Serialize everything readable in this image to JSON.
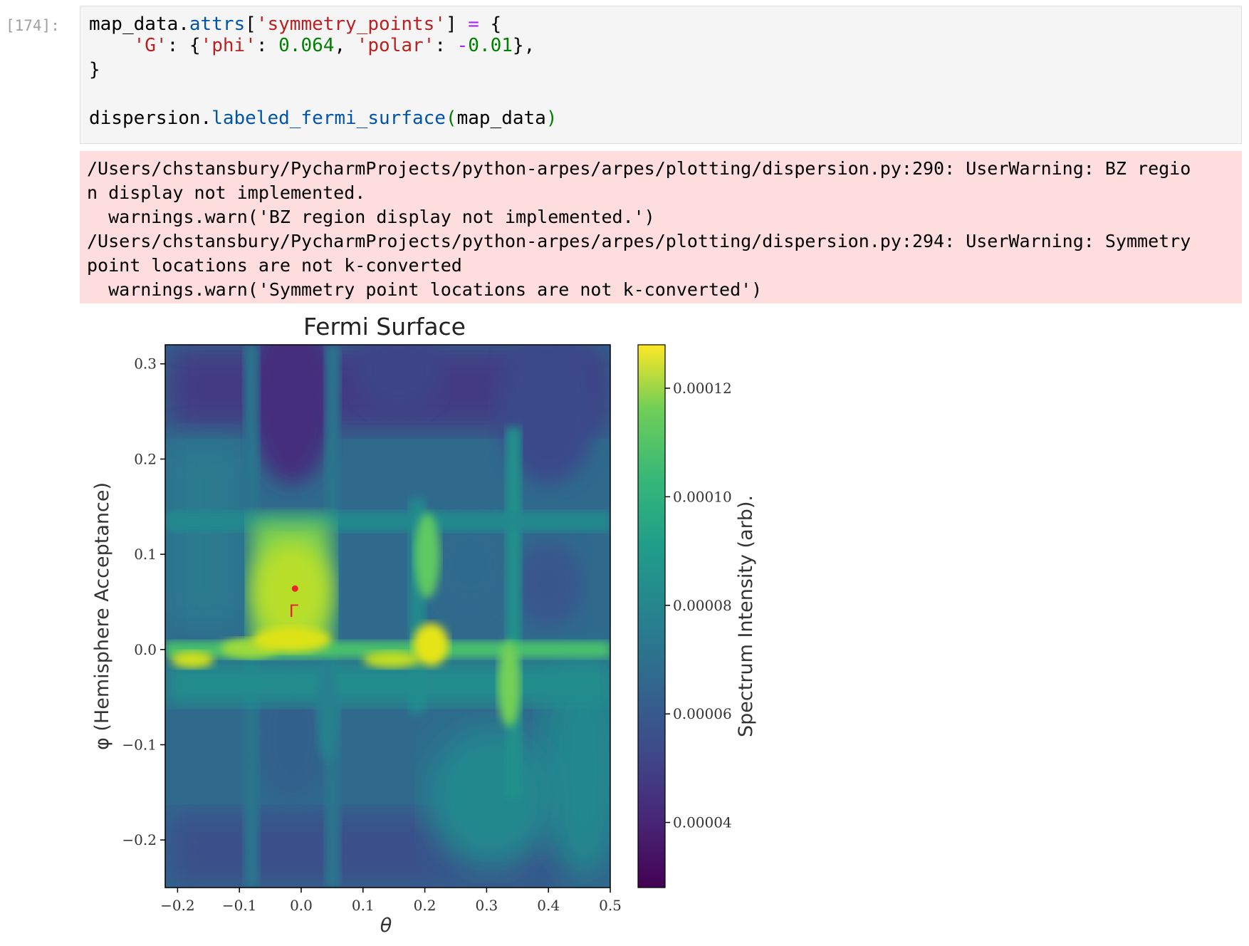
{
  "cell": {
    "prompt": "[174]:",
    "code": {
      "l1_a": "map_data.",
      "l1_b": "attrs",
      "l1_c": "[",
      "l1_d": "'symmetry_points'",
      "l1_e": "] ",
      "l1_f": "=",
      "l1_g": " {",
      "l2_a": "    ",
      "l2_b": "'G'",
      "l2_c": ": {",
      "l2_d": "'phi'",
      "l2_e": ": ",
      "l2_f": "0.064",
      "l2_g": ", ",
      "l2_h": "'polar'",
      "l2_i": ": ",
      "l2_j": "-",
      "l2_k": "0.01",
      "l2_l": "},",
      "l3": "}",
      "l5_a": "dispersion.",
      "l5_b": "labeled_fermi_surface",
      "l5_c": "(",
      "l5_d": "map_data",
      "l5_e": ")"
    }
  },
  "stderr": {
    "lines": [
      "/Users/chstansbury/PycharmProjects/python-arpes/arpes/plotting/dispersion.py:290: UserWarning: BZ regio",
      "n display not implemented.",
      "  warnings.warn('BZ region display not implemented.')",
      "/Users/chstansbury/PycharmProjects/python-arpes/arpes/plotting/dispersion.py:294: UserWarning: Symmetry",
      "point locations are not k-converted",
      "  warnings.warn('Symmetry point locations are not k-converted')"
    ]
  },
  "chart_data": {
    "type": "heatmap",
    "title": "Fermi Surface",
    "xlabel": "θ",
    "ylabel": "φ (Hemisphere Acceptance)",
    "xlim": [
      -0.22,
      0.5
    ],
    "ylim": [
      -0.25,
      0.32
    ],
    "xticks": [
      "−0.2",
      "−0.1",
      "0.0",
      "0.1",
      "0.2",
      "0.3",
      "0.4",
      "0.5"
    ],
    "xtick_values": [
      -0.2,
      -0.1,
      0.0,
      0.1,
      0.2,
      0.3,
      0.4,
      0.5
    ],
    "yticks": [
      "−0.2",
      "−0.1",
      "0.0",
      "0.1",
      "0.2",
      "0.3"
    ],
    "ytick_values": [
      -0.2,
      -0.1,
      0.0,
      0.1,
      0.2,
      0.3
    ],
    "colorbar": {
      "label": "Spectrum Intensity (arb).",
      "range": [
        2.8e-05,
        0.000128
      ],
      "ticks": [
        "0.00004",
        "0.00006",
        "0.00008",
        "0.00010",
        "0.00012"
      ],
      "tick_values": [
        4e-05,
        6e-05,
        8e-05,
        0.0001,
        0.00012
      ],
      "colormap": "viridis"
    },
    "symmetry_points": [
      {
        "label": "Γ",
        "x": -0.01,
        "y": 0.064,
        "color": "#e8242b"
      }
    ]
  }
}
